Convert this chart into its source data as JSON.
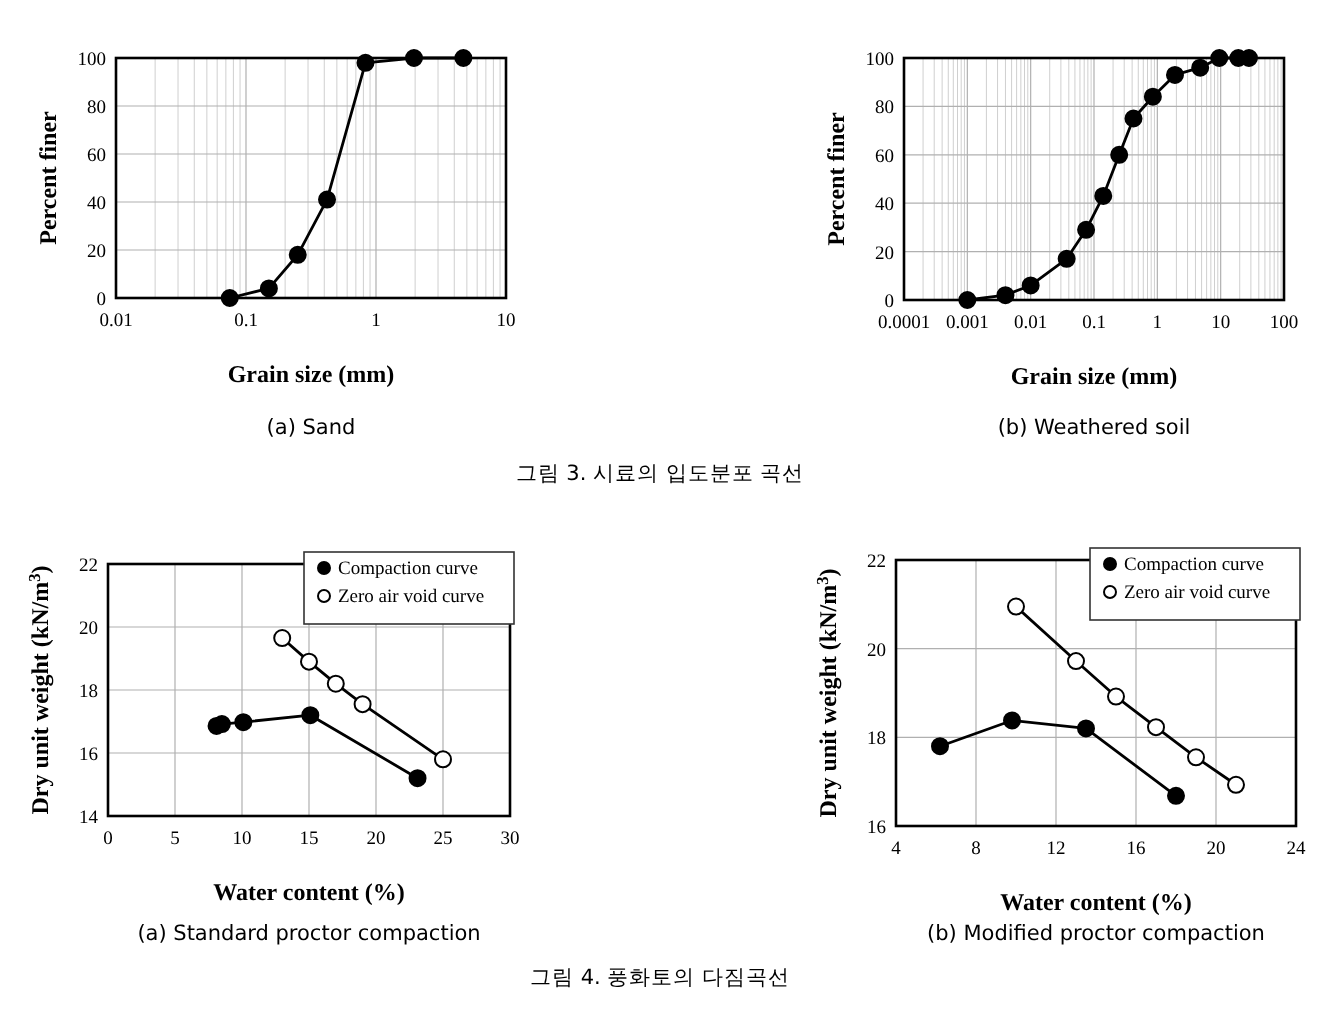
{
  "chart_data": [
    {
      "type": "line",
      "title": "(a) Sand",
      "xlabel": "Grain size (mm)",
      "ylabel": "Percent finer",
      "log": "x",
      "xlim": [
        0.01,
        10
      ],
      "ylim": [
        0,
        100
      ],
      "xticks": [
        0.01,
        0.1,
        1,
        10
      ],
      "yticks": [
        0,
        20,
        40,
        60,
        80,
        100
      ],
      "grid": true,
      "marker": "circle",
      "legend": false,
      "series": [
        {
          "color": "#000000",
          "x": [
            0.075,
            0.15,
            0.25,
            0.42,
            0.83,
            1.96,
            4.7
          ],
          "values": [
            0,
            4,
            18,
            41,
            98,
            100,
            100
          ]
        }
      ]
    },
    {
      "type": "line",
      "title": "(b) Weathered soil",
      "xlabel": "Grain size (mm)",
      "ylabel": "Percent finer",
      "log": "x",
      "xlim": [
        0.0001,
        100
      ],
      "ylim": [
        0,
        100
      ],
      "xticks": [
        0.0001,
        0.001,
        0.01,
        0.1,
        1,
        10,
        100
      ],
      "yticks": [
        0,
        20,
        40,
        60,
        80,
        100
      ],
      "grid": true,
      "marker": "circle",
      "legend": false,
      "annotations": [
        "그림 3. 시료의 입도분포 곡선"
      ],
      "series": [
        {
          "color": "#000000",
          "x": [
            0.001,
            0.004,
            0.01,
            0.037,
            0.075,
            0.14,
            0.25,
            0.42,
            0.85,
            1.9,
            4.75,
            9.5,
            19,
            28
          ],
          "values": [
            0,
            2,
            6,
            17,
            29,
            43,
            60,
            75,
            84,
            93,
            96,
            100,
            100,
            100
          ]
        }
      ]
    },
    {
      "type": "line",
      "title": "(a) Standard proctor compaction",
      "xlabel": "Water content (%)",
      "ylabel": "Dry unit weight (kN/m$^{3}$)",
      "xlim": [
        0,
        30
      ],
      "ylim": [
        14,
        22
      ],
      "xticks": [
        0,
        5,
        10,
        15,
        20,
        25,
        30
      ],
      "yticks": [
        14,
        16,
        18,
        20,
        22
      ],
      "grid": true,
      "marker": "circle",
      "legend": "top right",
      "series": [
        {
          "name": "Compaction curve",
          "color": "#000000",
          "x": [
            8.1,
            8.5,
            10.1,
            15.1,
            23.1
          ],
          "values": [
            16.86,
            16.92,
            16.98,
            17.2,
            15.2
          ]
        },
        {
          "name": "Zero air void curve",
          "color": "#000000",
          "x": [
            13,
            15,
            17,
            19,
            25
          ],
          "values": [
            19.65,
            18.9,
            18.2,
            17.55,
            15.8
          ]
        }
      ]
    },
    {
      "type": "line",
      "title": "(b) Modified proctor compaction",
      "xlabel": "Water content (%)",
      "ylabel": "Dry unit weight (kN/m$^{3}$)",
      "xlim": [
        4,
        24
      ],
      "ylim": [
        16,
        22
      ],
      "xticks": [
        4,
        8,
        12,
        16,
        20,
        24
      ],
      "yticks": [
        16,
        18,
        20,
        22
      ],
      "grid": true,
      "marker": "circle",
      "legend": "top right",
      "annotations": [
        "그림 4. 풍화토의 다짐곡선"
      ],
      "series": [
        {
          "name": "Compaction curve",
          "color": "#000000",
          "x": [
            6.2,
            9.8,
            13.5,
            18
          ],
          "values": [
            17.8,
            18.38,
            18.2,
            16.68
          ]
        },
        {
          "name": "Zero air void curve",
          "color": "#000000",
          "x": [
            10,
            13,
            15,
            17,
            19,
            21
          ],
          "values": [
            20.95,
            19.72,
            18.92,
            18.23,
            17.55,
            16.93
          ]
        }
      ]
    }
  ]
}
